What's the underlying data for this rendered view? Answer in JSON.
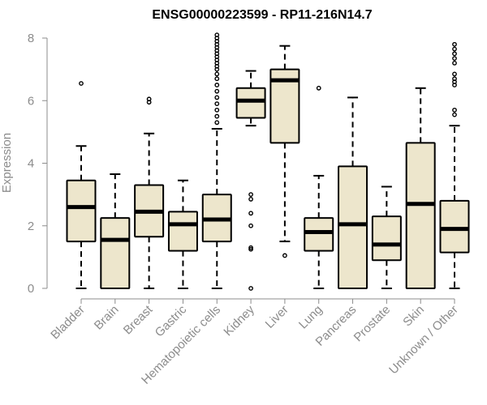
{
  "chart_data": {
    "type": "box",
    "title": "ENSG00000223599 - RP11-216N14.7",
    "xlabel": "",
    "ylabel": "Expression",
    "ylim": [
      0,
      8
    ],
    "yticks": [
      0,
      2,
      4,
      6,
      8
    ],
    "colors": {
      "box_fill": "#ede6cc",
      "box_stroke": "#000000",
      "axis": "#8c8c8c",
      "text": "#8c8c8c"
    },
    "categories": [
      "Bladder",
      "Brain",
      "Breast",
      "Gastric",
      "Hematopoietic cells",
      "Kidney",
      "Liver",
      "Lung",
      "Pancreas",
      "Prostate",
      "Skin",
      "Unknown / Other"
    ],
    "boxes": [
      {
        "label": "Bladder",
        "whisker_low": 0,
        "q1": 1.5,
        "median": 2.6,
        "q3": 3.45,
        "whisker_high": 4.55,
        "outliers": [
          6.55
        ]
      },
      {
        "label": "Brain",
        "whisker_low": 0,
        "q1": 0,
        "median": 1.55,
        "q3": 2.25,
        "whisker_high": 3.65,
        "outliers": []
      },
      {
        "label": "Breast",
        "whisker_low": 0,
        "q1": 1.65,
        "median": 2.45,
        "q3": 3.3,
        "whisker_high": 4.95,
        "outliers": [
          5.95,
          6.05
        ]
      },
      {
        "label": "Gastric",
        "whisker_low": 0,
        "q1": 1.2,
        "median": 2.05,
        "q3": 2.45,
        "whisker_high": 3.45,
        "outliers": []
      },
      {
        "label": "Hematopoietic cells",
        "whisker_low": 0,
        "q1": 1.5,
        "median": 2.2,
        "q3": 3.0,
        "whisker_high": 5.1,
        "outliers": [
          5.3,
          5.5,
          5.7,
          5.9,
          6.1,
          6.3,
          6.5,
          6.7,
          6.85,
          7.0,
          7.1,
          7.2,
          7.3,
          7.4,
          7.5,
          7.6,
          7.7,
          7.8,
          7.9,
          8.0,
          8.1
        ]
      },
      {
        "label": "Kidney",
        "whisker_low": 5.2,
        "q1": 5.45,
        "median": 6.0,
        "q3": 6.4,
        "whisker_high": 6.95,
        "outliers": [
          0.0,
          1.25,
          1.3,
          2.0,
          2.4,
          2.85,
          3.0
        ]
      },
      {
        "label": "Liver",
        "whisker_low": 1.5,
        "q1": 4.65,
        "median": 6.65,
        "q3": 7.0,
        "whisker_high": 7.75,
        "outliers": [
          1.05
        ]
      },
      {
        "label": "Lung",
        "whisker_low": 0,
        "q1": 1.2,
        "median": 1.8,
        "q3": 2.25,
        "whisker_high": 3.6,
        "outliers": [
          6.4
        ]
      },
      {
        "label": "Pancreas",
        "whisker_low": 0,
        "q1": 0,
        "median": 2.05,
        "q3": 3.9,
        "whisker_high": 6.1,
        "outliers": []
      },
      {
        "label": "Prostate",
        "whisker_low": 0,
        "q1": 0.9,
        "median": 1.4,
        "q3": 2.3,
        "whisker_high": 3.25,
        "outliers": []
      },
      {
        "label": "Skin",
        "whisker_low": 0,
        "q1": 0,
        "median": 2.7,
        "q3": 4.65,
        "whisker_high": 6.4,
        "outliers": []
      },
      {
        "label": "Unknown / Other",
        "whisker_low": 0,
        "q1": 1.15,
        "median": 1.9,
        "q3": 2.8,
        "whisker_high": 5.2,
        "outliers": [
          5.55,
          5.7,
          6.5,
          6.6,
          6.7,
          6.85,
          7.2,
          7.35,
          7.5,
          7.65,
          7.8
        ]
      }
    ]
  }
}
